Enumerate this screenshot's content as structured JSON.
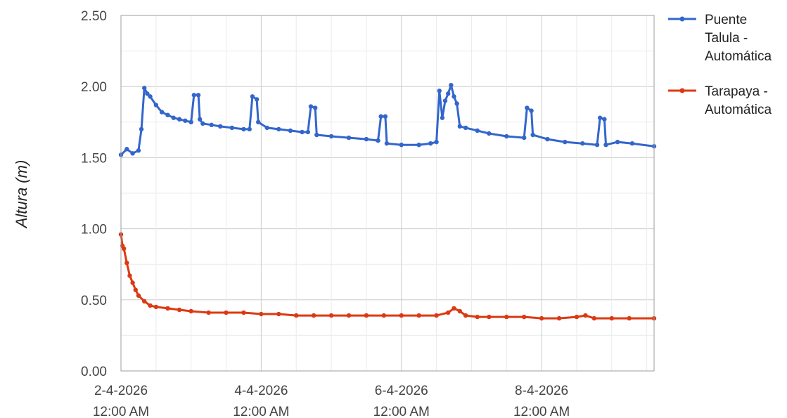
{
  "chart_data": {
    "type": "line",
    "title": "",
    "ylabel": "Altura (m)",
    "xlabel": "",
    "ylim": [
      0,
      2.5
    ],
    "yticks": [
      "0.00",
      "0.50",
      "1.00",
      "1.50",
      "2.00",
      "2.50"
    ],
    "xlim": [
      "2026-04-02T00:00",
      "2026-04-09T14:30"
    ],
    "xticks": [
      {
        "at": "2026-04-02T00:00",
        "date": "2-4-2026",
        "time": "12:00 AM"
      },
      {
        "at": "2026-04-04T00:00",
        "date": "4-4-2026",
        "time": "12:00 AM"
      },
      {
        "at": "2026-04-06T00:00",
        "date": "6-4-2026",
        "time": "12:00 AM"
      },
      {
        "at": "2026-04-08T00:00",
        "date": "8-4-2026",
        "time": "12:00 AM"
      }
    ],
    "grid": true,
    "legend_position": "right",
    "series": [
      {
        "name": "Puente Talula - Automática",
        "name_lines": [
          "Puente",
          "Talula -",
          "Automática"
        ],
        "color": "#3366cc",
        "points": [
          [
            "2026-04-02T00:00",
            1.52
          ],
          [
            "2026-04-02T02:00",
            1.56
          ],
          [
            "2026-04-02T04:00",
            1.53
          ],
          [
            "2026-04-02T06:00",
            1.55
          ],
          [
            "2026-04-02T07:00",
            1.7
          ],
          [
            "2026-04-02T08:00",
            1.99
          ],
          [
            "2026-04-02T09:00",
            1.95
          ],
          [
            "2026-04-02T10:00",
            1.93
          ],
          [
            "2026-04-02T12:00",
            1.87
          ],
          [
            "2026-04-02T14:00",
            1.82
          ],
          [
            "2026-04-02T16:00",
            1.8
          ],
          [
            "2026-04-02T18:00",
            1.78
          ],
          [
            "2026-04-02T20:00",
            1.77
          ],
          [
            "2026-04-02T22:00",
            1.76
          ],
          [
            "2026-04-03T00:00",
            1.75
          ],
          [
            "2026-04-03T01:00",
            1.94
          ],
          [
            "2026-04-03T02:30",
            1.94
          ],
          [
            "2026-04-03T03:00",
            1.77
          ],
          [
            "2026-04-03T04:00",
            1.74
          ],
          [
            "2026-04-03T07:00",
            1.73
          ],
          [
            "2026-04-03T10:00",
            1.72
          ],
          [
            "2026-04-03T14:00",
            1.71
          ],
          [
            "2026-04-03T18:00",
            1.7
          ],
          [
            "2026-04-03T20:00",
            1.7
          ],
          [
            "2026-04-03T21:00",
            1.93
          ],
          [
            "2026-04-03T22:30",
            1.91
          ],
          [
            "2026-04-03T23:00",
            1.75
          ],
          [
            "2026-04-04T02:00",
            1.71
          ],
          [
            "2026-04-04T06:00",
            1.7
          ],
          [
            "2026-04-04T10:00",
            1.69
          ],
          [
            "2026-04-04T14:00",
            1.68
          ],
          [
            "2026-04-04T16:00",
            1.68
          ],
          [
            "2026-04-04T17:00",
            1.86
          ],
          [
            "2026-04-04T18:30",
            1.85
          ],
          [
            "2026-04-04T19:00",
            1.66
          ],
          [
            "2026-04-05T00:00",
            1.65
          ],
          [
            "2026-04-05T06:00",
            1.64
          ],
          [
            "2026-04-05T12:00",
            1.63
          ],
          [
            "2026-04-05T16:00",
            1.62
          ],
          [
            "2026-04-05T17:00",
            1.79
          ],
          [
            "2026-04-05T18:30",
            1.79
          ],
          [
            "2026-04-05T19:00",
            1.6
          ],
          [
            "2026-04-06T00:00",
            1.59
          ],
          [
            "2026-04-06T06:00",
            1.59
          ],
          [
            "2026-04-06T10:00",
            1.6
          ],
          [
            "2026-04-06T12:00",
            1.61
          ],
          [
            "2026-04-06T13:00",
            1.97
          ],
          [
            "2026-04-06T14:00",
            1.78
          ],
          [
            "2026-04-06T15:00",
            1.9
          ],
          [
            "2026-04-06T16:00",
            1.95
          ],
          [
            "2026-04-06T17:00",
            2.01
          ],
          [
            "2026-04-06T18:00",
            1.93
          ],
          [
            "2026-04-06T19:00",
            1.88
          ],
          [
            "2026-04-06T20:00",
            1.72
          ],
          [
            "2026-04-06T22:00",
            1.71
          ],
          [
            "2026-04-07T02:00",
            1.69
          ],
          [
            "2026-04-07T06:00",
            1.67
          ],
          [
            "2026-04-07T12:00",
            1.65
          ],
          [
            "2026-04-07T18:00",
            1.64
          ],
          [
            "2026-04-07T19:00",
            1.85
          ],
          [
            "2026-04-07T20:30",
            1.83
          ],
          [
            "2026-04-07T21:00",
            1.66
          ],
          [
            "2026-04-08T02:00",
            1.63
          ],
          [
            "2026-04-08T08:00",
            1.61
          ],
          [
            "2026-04-08T14:00",
            1.6
          ],
          [
            "2026-04-08T19:00",
            1.59
          ],
          [
            "2026-04-08T20:00",
            1.78
          ],
          [
            "2026-04-08T21:30",
            1.77
          ],
          [
            "2026-04-08T22:00",
            1.59
          ],
          [
            "2026-04-09T02:00",
            1.61
          ],
          [
            "2026-04-09T07:00",
            1.6
          ],
          [
            "2026-04-09T14:30",
            1.58
          ]
        ]
      },
      {
        "name": "Tarapaya - Automática",
        "name_lines": [
          "Tarapaya -",
          "Automática"
        ],
        "color": "#dc3912",
        "points": [
          [
            "2026-04-02T00:00",
            0.96
          ],
          [
            "2026-04-02T00:30",
            0.88
          ],
          [
            "2026-04-02T01:00",
            0.86
          ],
          [
            "2026-04-02T02:00",
            0.76
          ],
          [
            "2026-04-02T03:00",
            0.67
          ],
          [
            "2026-04-02T04:00",
            0.62
          ],
          [
            "2026-04-02T05:00",
            0.57
          ],
          [
            "2026-04-02T06:00",
            0.53
          ],
          [
            "2026-04-02T08:00",
            0.49
          ],
          [
            "2026-04-02T10:00",
            0.46
          ],
          [
            "2026-04-02T12:00",
            0.45
          ],
          [
            "2026-04-02T16:00",
            0.44
          ],
          [
            "2026-04-02T20:00",
            0.43
          ],
          [
            "2026-04-03T00:00",
            0.42
          ],
          [
            "2026-04-03T06:00",
            0.41
          ],
          [
            "2026-04-03T12:00",
            0.41
          ],
          [
            "2026-04-03T18:00",
            0.41
          ],
          [
            "2026-04-04T00:00",
            0.4
          ],
          [
            "2026-04-04T06:00",
            0.4
          ],
          [
            "2026-04-04T12:00",
            0.39
          ],
          [
            "2026-04-04T18:00",
            0.39
          ],
          [
            "2026-04-05T00:00",
            0.39
          ],
          [
            "2026-04-05T06:00",
            0.39
          ],
          [
            "2026-04-05T12:00",
            0.39
          ],
          [
            "2026-04-05T18:00",
            0.39
          ],
          [
            "2026-04-06T00:00",
            0.39
          ],
          [
            "2026-04-06T06:00",
            0.39
          ],
          [
            "2026-04-06T12:00",
            0.39
          ],
          [
            "2026-04-06T16:00",
            0.41
          ],
          [
            "2026-04-06T18:00",
            0.44
          ],
          [
            "2026-04-06T20:00",
            0.42
          ],
          [
            "2026-04-06T22:00",
            0.39
          ],
          [
            "2026-04-07T02:00",
            0.38
          ],
          [
            "2026-04-07T06:00",
            0.38
          ],
          [
            "2026-04-07T12:00",
            0.38
          ],
          [
            "2026-04-07T18:00",
            0.38
          ],
          [
            "2026-04-08T00:00",
            0.37
          ],
          [
            "2026-04-08T06:00",
            0.37
          ],
          [
            "2026-04-08T12:00",
            0.38
          ],
          [
            "2026-04-08T15:00",
            0.39
          ],
          [
            "2026-04-08T18:00",
            0.37
          ],
          [
            "2026-04-09T00:00",
            0.37
          ],
          [
            "2026-04-09T06:00",
            0.37
          ],
          [
            "2026-04-09T14:30",
            0.37
          ]
        ]
      }
    ]
  }
}
